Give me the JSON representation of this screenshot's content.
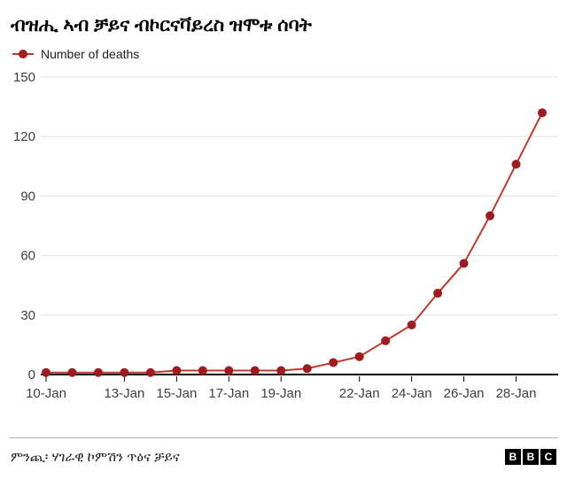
{
  "title": "ብዝሒ ኣብ ቻይና ብኮርናቫይረስ ዝሞቱ ሰባት",
  "legend": {
    "label": "Number of deaths"
  },
  "chart_data": {
    "type": "line",
    "title": "ብዝሒ ኣብ ቻይና ብኮርናቫይረስ ዝሞቱ ሰባት",
    "series_name": "Number of deaths",
    "x": [
      "10-Jan",
      "11-Jan",
      "12-Jan",
      "13-Jan",
      "14-Jan",
      "15-Jan",
      "16-Jan",
      "17-Jan",
      "18-Jan",
      "19-Jan",
      "20-Jan",
      "21-Jan",
      "22-Jan",
      "23-Jan",
      "24-Jan",
      "25-Jan",
      "26-Jan",
      "27-Jan",
      "28-Jan",
      "29-Jan"
    ],
    "values": [
      1,
      1,
      1,
      1,
      1,
      2,
      2,
      2,
      2,
      2,
      3,
      6,
      9,
      17,
      25,
      41,
      56,
      80,
      106,
      132
    ],
    "x_tick_labels": [
      "10-Jan",
      "13-Jan",
      "15-Jan",
      "17-Jan",
      "19-Jan",
      "22-Jan",
      "24-Jan",
      "26-Jan",
      "28-Jan"
    ],
    "y_ticks": [
      0,
      30,
      60,
      90,
      120,
      150
    ],
    "ylim": [
      0,
      150
    ],
    "grid": true,
    "legend_position": "top-left",
    "line_color": "#c0392b",
    "dot_color": "#9f1b20",
    "grid_color": "#e2e2e2",
    "axis_color": "#000000",
    "tick_label_color": "#404040"
  },
  "footer": {
    "source": "ምንጪ፡ ሃገራዊ ኮምሽን ጥዕና ቻይና",
    "logo_letters": [
      "B",
      "B",
      "C"
    ]
  }
}
